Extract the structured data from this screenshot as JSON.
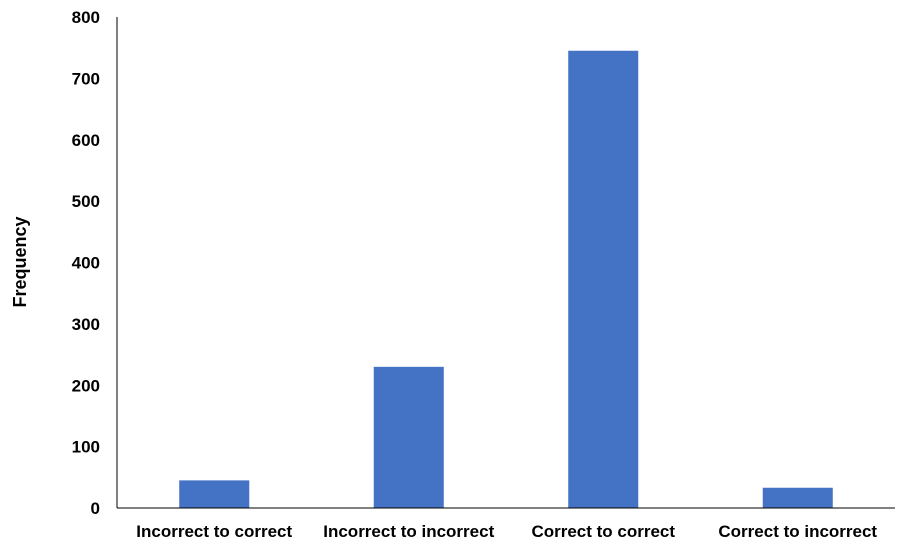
{
  "chart_data": {
    "type": "bar",
    "title": "",
    "xlabel": "",
    "ylabel": "Frequency",
    "categories": [
      "Incorrect to correct",
      "Incorrect to incorrect",
      "Correct to correct",
      "Correct to incorrect"
    ],
    "values": [
      45,
      230,
      745,
      33
    ],
    "ylim": [
      0,
      800
    ],
    "yticks": [
      "0",
      "100",
      "200",
      "300",
      "400",
      "500",
      "600",
      "700",
      "800"
    ],
    "grid": false,
    "legend": "none",
    "bar_color": "#4472C4",
    "axis_color": "#000000"
  }
}
